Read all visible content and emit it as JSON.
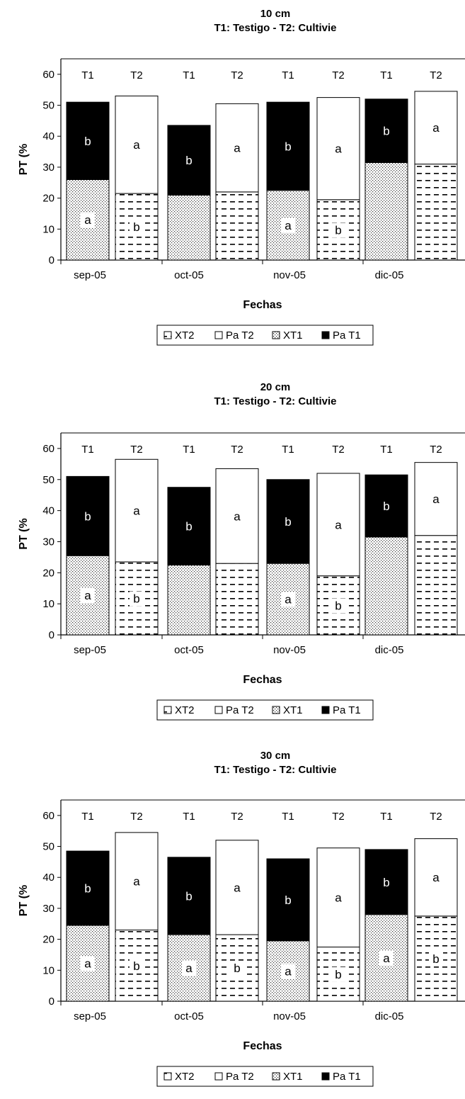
{
  "chart_data": [
    {
      "type": "bar",
      "stacked": true,
      "title": "10 cm",
      "subtitle": "T1: Testigo  - T2: Cultivie",
      "xlabel": "Fechas",
      "ylabel": "PT (%",
      "ylim": [
        0,
        65
      ],
      "yticks": [
        "0",
        "10",
        "20",
        "30",
        "40",
        "50",
        "60"
      ],
      "categories": [
        "sep-05",
        "oct-05",
        "nov-05",
        "dic-05"
      ],
      "bar_labels": [
        "T1",
        "T2",
        "T1",
        "T2",
        "T1",
        "T2",
        "T1",
        "T2"
      ],
      "legend": [
        "XT2",
        "Pa T2",
        "XT1",
        "Pa T1"
      ],
      "legend_position": "bottom",
      "grid": false,
      "bars": [
        {
          "treatment": "T1",
          "date": "sep-05",
          "X": 26,
          "Pa": 25,
          "X_label": "a",
          "Pa_label": "b"
        },
        {
          "treatment": "T2",
          "date": "sep-05",
          "X": 21.5,
          "Pa": 31.5,
          "X_label": "b",
          "Pa_label": "a"
        },
        {
          "treatment": "T1",
          "date": "oct-05",
          "X": 21,
          "Pa": 22.5,
          "X_label": "",
          "Pa_label": "b"
        },
        {
          "treatment": "T2",
          "date": "oct-05",
          "X": 22,
          "Pa": 28.5,
          "X_label": "",
          "Pa_label": "a"
        },
        {
          "treatment": "T1",
          "date": "nov-05",
          "X": 22.5,
          "Pa": 28.5,
          "X_label": "a",
          "Pa_label": "b"
        },
        {
          "treatment": "T2",
          "date": "nov-05",
          "X": 19.5,
          "Pa": 33,
          "X_label": "b",
          "Pa_label": "a"
        },
        {
          "treatment": "T1",
          "date": "dic-05",
          "X": 31.5,
          "Pa": 20.5,
          "X_label": "",
          "Pa_label": "b"
        },
        {
          "treatment": "T2",
          "date": "dic-05",
          "X": 31,
          "Pa": 23.5,
          "X_label": "",
          "Pa_label": "a"
        }
      ]
    },
    {
      "type": "bar",
      "stacked": true,
      "title": "20 cm",
      "subtitle": "T1: Testigo  - T2: Cultivie",
      "xlabel": "Fechas",
      "ylabel": "PT (%",
      "ylim": [
        0,
        65
      ],
      "yticks": [
        "0",
        "10",
        "20",
        "30",
        "40",
        "50",
        "60"
      ],
      "categories": [
        "sep-05",
        "oct-05",
        "nov-05",
        "dic-05"
      ],
      "bar_labels": [
        "T1",
        "T2",
        "T1",
        "T2",
        "T1",
        "T2",
        "T1",
        "T2"
      ],
      "legend": [
        "XT2",
        "Pa T2",
        "XT1",
        "Pa T1"
      ],
      "legend_position": "bottom",
      "grid": false,
      "bars": [
        {
          "treatment": "T1",
          "date": "sep-05",
          "X": 25.5,
          "Pa": 25.5,
          "X_label": "a",
          "Pa_label": "b"
        },
        {
          "treatment": "T2",
          "date": "sep-05",
          "X": 23.5,
          "Pa": 33,
          "X_label": "b",
          "Pa_label": "a"
        },
        {
          "treatment": "T1",
          "date": "oct-05",
          "X": 22.5,
          "Pa": 25,
          "X_label": "",
          "Pa_label": "b"
        },
        {
          "treatment": "T2",
          "date": "oct-05",
          "X": 23,
          "Pa": 30.5,
          "X_label": "",
          "Pa_label": "a"
        },
        {
          "treatment": "T1",
          "date": "nov-05",
          "X": 23,
          "Pa": 27,
          "X_label": "a",
          "Pa_label": "b"
        },
        {
          "treatment": "T2",
          "date": "nov-05",
          "X": 19,
          "Pa": 33,
          "X_label": "b",
          "Pa_label": "a"
        },
        {
          "treatment": "T1",
          "date": "dic-05",
          "X": 31.5,
          "Pa": 20,
          "X_label": "",
          "Pa_label": "b"
        },
        {
          "treatment": "T2",
          "date": "dic-05",
          "X": 32,
          "Pa": 23.5,
          "X_label": "",
          "Pa_label": "a"
        }
      ]
    },
    {
      "type": "bar",
      "stacked": true,
      "title": "30 cm",
      "subtitle": "T1: Testigo - T2: Cultivie",
      "xlabel": "Fechas",
      "ylabel": "PT (%",
      "ylim": [
        0,
        65
      ],
      "yticks": [
        "0",
        "10",
        "20",
        "30",
        "40",
        "50",
        "60"
      ],
      "categories": [
        "sep-05",
        "oct-05",
        "nov-05",
        "dic-05"
      ],
      "bar_labels": [
        "T1",
        "T2",
        "T1",
        "T2",
        "T1",
        "T2",
        "T1",
        "T2"
      ],
      "legend": [
        "XT2",
        "Pa T2",
        "XT1",
        "Pa T1"
      ],
      "legend_position": "bottom",
      "grid": false,
      "bars": [
        {
          "treatment": "T1",
          "date": "sep-05",
          "X": 24.5,
          "Pa": 24,
          "X_label": "a",
          "Pa_label": "b"
        },
        {
          "treatment": "T2",
          "date": "sep-05",
          "X": 23,
          "Pa": 31.5,
          "X_label": "b",
          "Pa_label": "a"
        },
        {
          "treatment": "T1",
          "date": "oct-05",
          "X": 21.5,
          "Pa": 25,
          "X_label": "a",
          "Pa_label": "b"
        },
        {
          "treatment": "T2",
          "date": "oct-05",
          "X": 21.5,
          "Pa": 30.5,
          "X_label": "b",
          "Pa_label": "a"
        },
        {
          "treatment": "T1",
          "date": "nov-05",
          "X": 19.5,
          "Pa": 26.5,
          "X_label": "a",
          "Pa_label": "b"
        },
        {
          "treatment": "T2",
          "date": "nov-05",
          "X": 17.5,
          "Pa": 32,
          "X_label": "b",
          "Pa_label": "a"
        },
        {
          "treatment": "T1",
          "date": "dic-05",
          "X": 28,
          "Pa": 21,
          "X_label": "a",
          "Pa_label": "b"
        },
        {
          "treatment": "T2",
          "date": "dic-05",
          "X": 27.5,
          "Pa": 25,
          "X_label": "b",
          "Pa_label": "a"
        }
      ]
    }
  ]
}
